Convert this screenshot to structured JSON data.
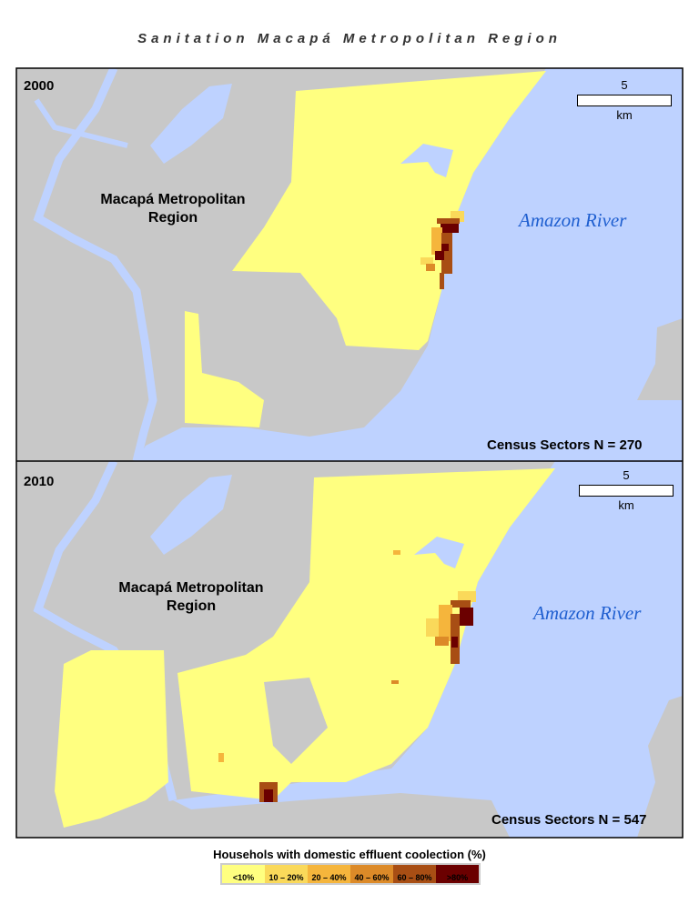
{
  "title": "Sanitation Macapá Metropolitan Region",
  "colors": {
    "land": "#c8c8c8",
    "water": "#bed2ff",
    "border": "#000000"
  },
  "panels": [
    {
      "year": "2000",
      "region_label_line1": "Macapá Metropolitan",
      "region_label_line2": "Region",
      "river_label": "Amazon River",
      "census": "Census Sectors N = 270",
      "scale_value": "5",
      "scale_unit": "km"
    },
    {
      "year": "2010",
      "region_label_line1": "Macapá Metropolitan",
      "region_label_line2": "Region",
      "river_label": "Amazon River",
      "census": "Census Sectors N = 547",
      "scale_value": "5",
      "scale_unit": "km"
    }
  ],
  "legend": {
    "title": "Househols with domestic effluent coolection (%)",
    "classes": [
      {
        "label": "<10%",
        "color": "#ffff80"
      },
      {
        "label": "10 – 20%",
        "color": "#fad95a"
      },
      {
        "label": "20 – 40%",
        "color": "#f5b53c"
      },
      {
        "label": "40 – 60%",
        "color": "#dc8a28"
      },
      {
        "label": "60 – 80%",
        "color": "#a84e14"
      },
      {
        "label": ">80%",
        "color": "#6b0000"
      }
    ]
  }
}
